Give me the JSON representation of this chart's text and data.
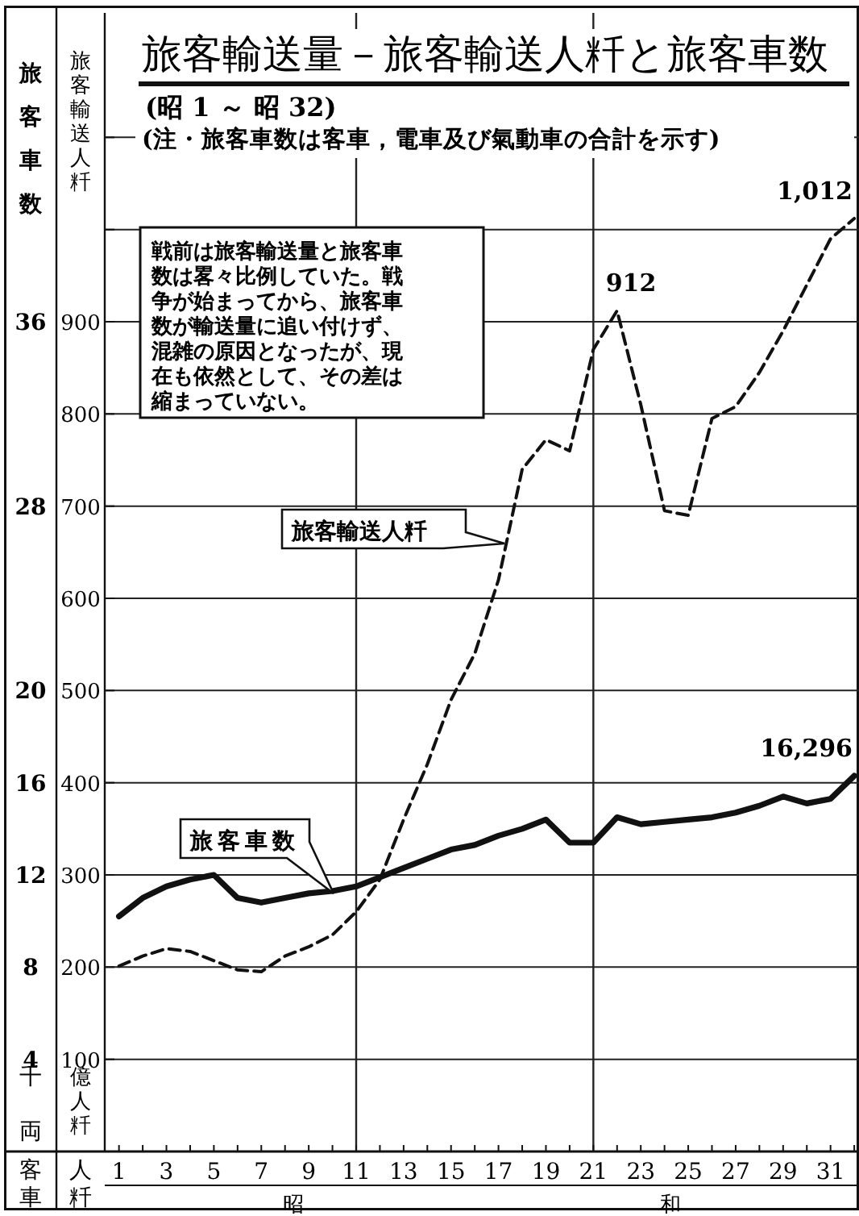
{
  "chart_data": {
    "type": "line",
    "title": "旅客輸送量－旅客輸送人粁と旅客車数",
    "subtitle": "(昭 1 ～ 昭 32)",
    "ylabel": "旅客車数",
    "y2label": "旅客輸送人粁",
    "annotations": [
      "16,296",
      "(注・旅客車数は客車，電車及び氣動車の合計を示す)",
      "戦前は旅客輸送量と旅客車数は畧々比例していた。戦争が始まってから、旅客車数が輸送量に追い付けず、混雑の原因となったが、現在も依然として、その差は縮まっていない。",
      "千両",
      "億人粁",
      "客車",
      "人粁",
      "昭",
      "和"
    ],
    "x": [
      1,
      2,
      3,
      4,
      5,
      6,
      7,
      8,
      9,
      10,
      11,
      12,
      13,
      14,
      15,
      16,
      17,
      18,
      19,
      20,
      21,
      22,
      23,
      24,
      25,
      26,
      27,
      28,
      29,
      30,
      31,
      32
    ],
    "xlim": [
      0.4,
      32.2
    ],
    "xticks": [
      1,
      {
        "value": 2,
        "label": null
      },
      3,
      {
        "value": 4,
        "label": null
      },
      5,
      {
        "value": 6,
        "label": null
      },
      7,
      {
        "value": 8,
        "label": null
      },
      9,
      {
        "value": 10,
        "label": null
      },
      11,
      {
        "value": 12,
        "label": null
      },
      13,
      {
        "value": 14,
        "label": null
      },
      15,
      {
        "value": 16,
        "label": null
      },
      17,
      {
        "value": 18,
        "label": null
      },
      19,
      {
        "value": 20,
        "label": null
      },
      21,
      {
        "value": 22,
        "label": null
      },
      23,
      {
        "value": 24,
        "label": null
      },
      25,
      {
        "value": 26,
        "label": null
      },
      27,
      {
        "value": 28,
        "label": null
      },
      29,
      {
        "value": 30,
        "label": null
      },
      31,
      {
        "value": 32,
        "label": null
      }
    ],
    "ylim": [
      0,
      49.4
    ],
    "yticks": [
      4,
      8,
      12,
      16,
      20,
      {
        "value": 24,
        "label": null
      },
      28,
      {
        "value": 32,
        "label": null
      },
      36,
      {
        "value": 40,
        "label": null
      },
      {
        "value": 44,
        "label": null
      }
    ],
    "y2lim": [
      0,
      1235
    ],
    "y2ticks": [
      100,
      200,
      300,
      400,
      500,
      600,
      700,
      800,
      900,
      {
        "value": 1000,
        "label": null
      },
      {
        "value": 1100,
        "label": null
      }
    ],
    "grid": "y",
    "ref_lines": [
      {
        "axis": "x",
        "value": 11
      },
      {
        "axis": "x",
        "value": 21
      }
    ],
    "series": [
      {
        "name": "旅客輸送人粁",
        "color": "#111111",
        "axis": "y2",
        "line_style": "dashed",
        "values": [
          201,
          212,
          220,
          217,
          207,
          197,
          195,
          212,
          222,
          235,
          260,
          295,
          360,
          420,
          490,
          540,
          620,
          740,
          772,
          760,
          870,
          912,
          810,
          695,
          690,
          795,
          808,
          845,
          890,
          940,
          990,
          1012
        ],
        "value_labels": [
          null,
          null,
          null,
          null,
          null,
          null,
          null,
          null,
          null,
          null,
          null,
          null,
          null,
          null,
          null,
          null,
          null,
          null,
          null,
          null,
          null,
          "912",
          null,
          null,
          null,
          null,
          null,
          null,
          null,
          null,
          null,
          "1,012"
        ]
      },
      {
        "name": "旅客車数",
        "color": "#111111",
        "line_style": "solid",
        "values": [
          10.2,
          11.0,
          11.5,
          11.8,
          12.0,
          11.0,
          10.8,
          11.0,
          11.2,
          11.3,
          11.5,
          11.9,
          12.3,
          12.7,
          13.1,
          13.3,
          13.7,
          14.0,
          14.4,
          13.4,
          13.4,
          14.5,
          14.2,
          14.3,
          14.4,
          14.5,
          14.7,
          15.0,
          15.4,
          15.1,
          15.3,
          16.3
        ]
      }
    ]
  }
}
